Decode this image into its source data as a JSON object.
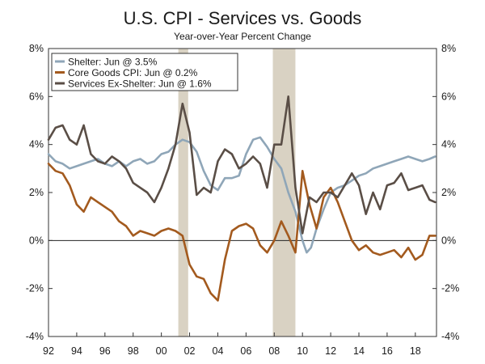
{
  "chart_data": {
    "type": "line",
    "title": "U.S. CPI - Services vs. Goods",
    "subtitle": "Year-over-Year Percent Change",
    "ylim": [
      -4,
      8
    ],
    "y_ticks": [
      -4,
      -2,
      0,
      2,
      4,
      6,
      8
    ],
    "y_tick_labels": [
      "-4%",
      "-2%",
      "0%",
      "2%",
      "4%",
      "6%",
      "8%"
    ],
    "xlim": [
      1992,
      2019.5
    ],
    "x_ticks": [
      1992,
      1994,
      1996,
      1998,
      2000,
      2002,
      2004,
      2006,
      2008,
      2010,
      2012,
      2014,
      2016,
      2018
    ],
    "x_tick_labels": [
      "92",
      "94",
      "96",
      "98",
      "00",
      "02",
      "04",
      "06",
      "08",
      "10",
      "12",
      "14",
      "16",
      "18"
    ],
    "legend_position": "top-left",
    "recessions": [
      [
        2001.2,
        2001.9
      ],
      [
        2007.9,
        2009.5
      ]
    ],
    "zero_line": true,
    "series": [
      {
        "name": "Shelter: Jun @ 3.5%",
        "color": "#8fa6b8",
        "x": [
          1992.0,
          1992.5,
          1993.0,
          1993.5,
          1994.0,
          1994.5,
          1995.0,
          1995.5,
          1996.0,
          1996.5,
          1997.0,
          1997.5,
          1998.0,
          1998.5,
          1999.0,
          1999.5,
          2000.0,
          2000.5,
          2001.0,
          2001.5,
          2002.0,
          2002.5,
          2003.0,
          2003.5,
          2004.0,
          2004.5,
          2005.0,
          2005.5,
          2006.0,
          2006.5,
          2007.0,
          2007.5,
          2008.0,
          2008.5,
          2009.0,
          2009.5,
          2010.0,
          2010.3,
          2010.6,
          2011.0,
          2011.5,
          2012.0,
          2012.5,
          2013.0,
          2013.5,
          2014.0,
          2014.5,
          2015.0,
          2015.5,
          2016.0,
          2016.5,
          2017.0,
          2017.5,
          2018.0,
          2018.5,
          2019.0,
          2019.4
        ],
        "values": [
          3.6,
          3.3,
          3.2,
          3.0,
          3.1,
          3.2,
          3.3,
          3.4,
          3.2,
          3.1,
          3.3,
          3.1,
          3.3,
          3.4,
          3.2,
          3.3,
          3.6,
          3.7,
          4.0,
          4.2,
          4.1,
          3.7,
          2.9,
          2.3,
          2.1,
          2.6,
          2.6,
          2.7,
          3.6,
          4.2,
          4.3,
          3.9,
          3.4,
          3.0,
          2.0,
          1.2,
          0.0,
          -0.5,
          -0.3,
          0.5,
          1.3,
          2.0,
          2.2,
          2.3,
          2.5,
          2.7,
          2.8,
          3.0,
          3.1,
          3.2,
          3.3,
          3.4,
          3.5,
          3.4,
          3.3,
          3.4,
          3.5
        ]
      },
      {
        "name": "Core Goods CPI: Jun @ 0.2%",
        "color": "#a35a1e",
        "x": [
          1992.0,
          1992.5,
          1993.0,
          1993.5,
          1994.0,
          1994.5,
          1995.0,
          1995.5,
          1996.0,
          1996.5,
          1997.0,
          1997.5,
          1998.0,
          1998.5,
          1999.0,
          1999.5,
          2000.0,
          2000.5,
          2001.0,
          2001.5,
          2002.0,
          2002.5,
          2003.0,
          2003.5,
          2004.0,
          2004.5,
          2005.0,
          2005.5,
          2006.0,
          2006.5,
          2007.0,
          2007.5,
          2008.0,
          2008.5,
          2009.0,
          2009.5,
          2010.0,
          2010.5,
          2011.0,
          2011.5,
          2012.0,
          2012.5,
          2013.0,
          2013.5,
          2014.0,
          2014.5,
          2015.0,
          2015.5,
          2016.0,
          2016.5,
          2017.0,
          2017.5,
          2018.0,
          2018.5,
          2019.0,
          2019.4
        ],
        "values": [
          3.2,
          2.9,
          2.8,
          2.3,
          1.5,
          1.2,
          1.8,
          1.6,
          1.4,
          1.2,
          0.8,
          0.6,
          0.2,
          0.4,
          0.3,
          0.2,
          0.4,
          0.5,
          0.4,
          0.2,
          -1.0,
          -1.5,
          -1.6,
          -2.2,
          -2.5,
          -0.8,
          0.4,
          0.6,
          0.7,
          0.5,
          -0.2,
          -0.5,
          0.0,
          0.8,
          0.2,
          -0.5,
          2.9,
          1.5,
          0.5,
          1.8,
          2.2,
          1.6,
          0.8,
          0.0,
          -0.4,
          -0.2,
          -0.5,
          -0.6,
          -0.5,
          -0.4,
          -0.7,
          -0.3,
          -0.8,
          -0.6,
          0.2,
          0.2
        ]
      },
      {
        "name": "Services Ex-Shelter: Jun @ 1.6%",
        "color": "#5a4e46",
        "x": [
          1992.0,
          1992.5,
          1993.0,
          1993.5,
          1994.0,
          1994.5,
          1995.0,
          1995.5,
          1996.0,
          1996.5,
          1997.0,
          1997.5,
          1998.0,
          1998.5,
          1999.0,
          1999.5,
          2000.0,
          2000.5,
          2001.0,
          2001.5,
          2002.0,
          2002.5,
          2003.0,
          2003.5,
          2004.0,
          2004.5,
          2005.0,
          2005.5,
          2006.0,
          2006.5,
          2007.0,
          2007.5,
          2008.0,
          2008.5,
          2009.0,
          2009.5,
          2010.0,
          2010.5,
          2011.0,
          2011.5,
          2012.0,
          2012.5,
          2013.0,
          2013.5,
          2014.0,
          2014.5,
          2015.0,
          2015.5,
          2016.0,
          2016.5,
          2017.0,
          2017.5,
          2018.0,
          2018.5,
          2019.0,
          2019.4
        ],
        "values": [
          4.2,
          4.7,
          4.8,
          4.2,
          4.0,
          4.8,
          3.6,
          3.3,
          3.2,
          3.5,
          3.3,
          3.0,
          2.4,
          2.2,
          2.0,
          1.6,
          2.2,
          3.0,
          4.0,
          5.7,
          4.5,
          1.9,
          2.2,
          2.0,
          3.3,
          3.8,
          3.6,
          3.0,
          3.2,
          3.5,
          3.2,
          2.2,
          4.0,
          4.0,
          6.0,
          2.2,
          0.3,
          1.8,
          1.6,
          2.0,
          2.0,
          1.8,
          2.3,
          2.8,
          2.3,
          1.1,
          2.0,
          1.3,
          2.3,
          2.4,
          2.8,
          2.1,
          2.2,
          2.3,
          1.7,
          1.6
        ]
      }
    ]
  }
}
